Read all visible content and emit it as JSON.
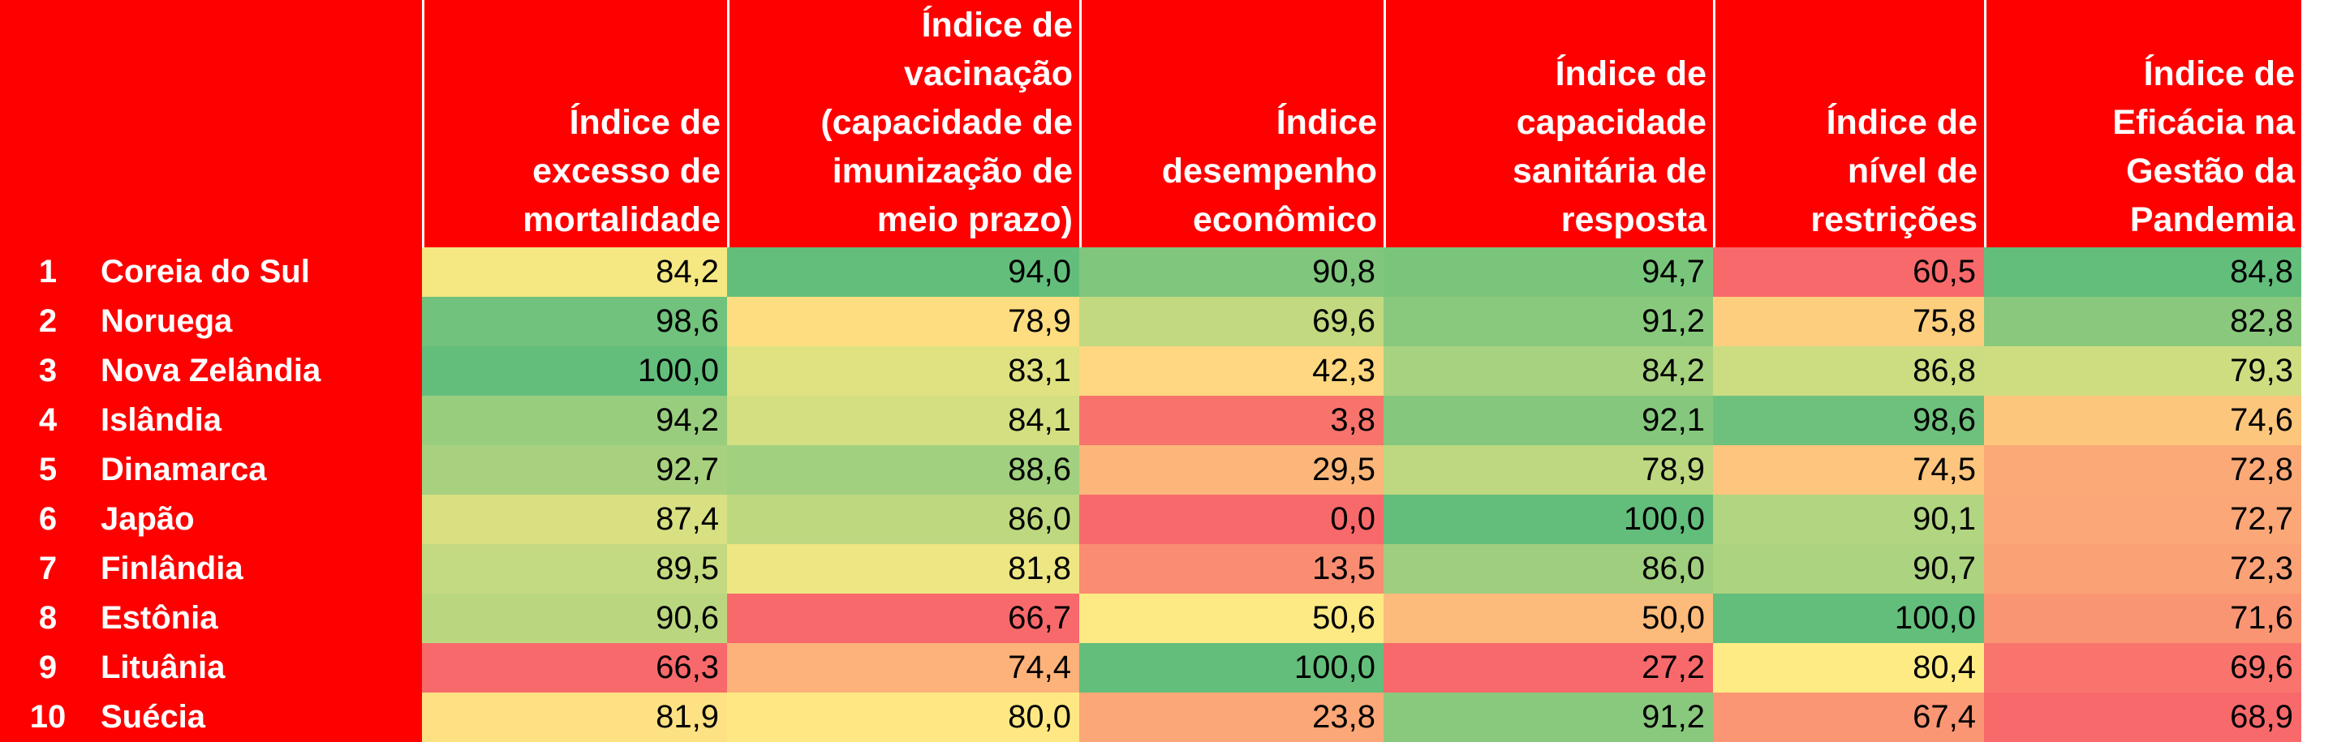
{
  "table": {
    "headers": [
      "Índice de\nexcesso de\nmortalidade",
      "Índice de\nvacinação\n(capacidade de\nimunização de\nmeio prazo)",
      "Índice\ndesempenho\neconômico",
      "Índice de\ncapacidade\nsanitária de\nresposta",
      "Índice de\nnível de\nrestrições",
      "Índice de\nEficácia na\nGestão da\nPandemia"
    ],
    "colors": {
      "header_bg": "#ff0000",
      "header_text": "#ffffff",
      "scale_low": "#f8696b",
      "scale_mid": "#ffeb84",
      "scale_high": "#63be7b"
    },
    "rows": [
      {
        "rank": "1",
        "country": "Coreia do Sul",
        "values": [
          "84,2",
          "94,0",
          "90,8",
          "94,7",
          "60,5",
          "84,8"
        ]
      },
      {
        "rank": "2",
        "country": "Noruega",
        "values": [
          "98,6",
          "78,9",
          "69,6",
          "91,2",
          "75,8",
          "82,8"
        ]
      },
      {
        "rank": "3",
        "country": "Nova Zelândia",
        "values": [
          "100,0",
          "83,1",
          "42,3",
          "84,2",
          "86,8",
          "79,3"
        ]
      },
      {
        "rank": "4",
        "country": "Islândia",
        "values": [
          "94,2",
          "84,1",
          "3,8",
          "92,1",
          "98,6",
          "74,6"
        ]
      },
      {
        "rank": "5",
        "country": "Dinamarca",
        "values": [
          "92,7",
          "88,6",
          "29,5",
          "78,9",
          "74,5",
          "72,8"
        ]
      },
      {
        "rank": "6",
        "country": "Japão",
        "values": [
          "87,4",
          "86,0",
          "0,0",
          "100,0",
          "90,1",
          "72,7"
        ]
      },
      {
        "rank": "7",
        "country": "Finlândia",
        "values": [
          "89,5",
          "81,8",
          "13,5",
          "86,0",
          "90,7",
          "72,3"
        ]
      },
      {
        "rank": "8",
        "country": "Estônia",
        "values": [
          "90,6",
          "66,7",
          "50,6",
          "50,0",
          "100,0",
          "71,6"
        ]
      },
      {
        "rank": "9",
        "country": "Lituânia",
        "values": [
          "66,3",
          "74,4",
          "100,0",
          "27,2",
          "80,4",
          "69,6"
        ]
      },
      {
        "rank": "10",
        "country": "Suécia",
        "values": [
          "81,9",
          "80,0",
          "23,8",
          "91,2",
          "67,4",
          "68,9"
        ]
      }
    ]
  }
}
